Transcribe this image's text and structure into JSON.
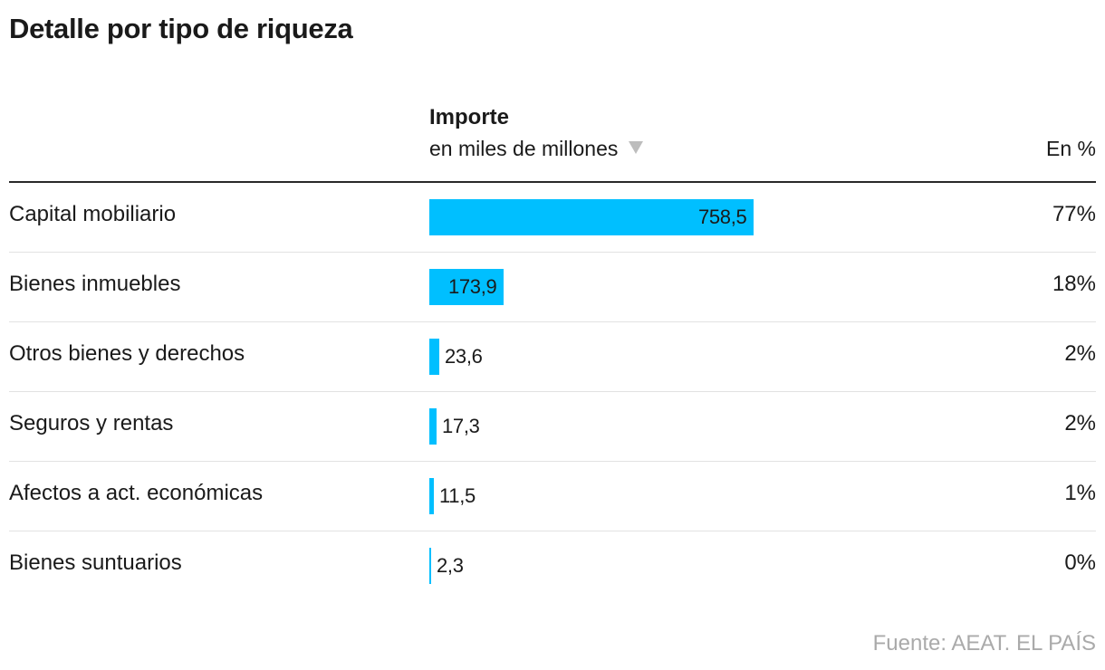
{
  "title": "Detalle por tipo de riqueza",
  "header": {
    "importe": "Importe",
    "unit": "en miles de millones",
    "pct": "En %"
  },
  "chart_data": {
    "type": "bar",
    "title": "Detalle por tipo de riqueza",
    "xlabel": "Importe en miles de millones",
    "ylabel": "",
    "categories": [
      "Capital mobiliario",
      "Bienes inmuebles",
      "Otros bienes y derechos",
      "Seguros y rentas",
      "Afectos a act. económicas",
      "Bienes suntuarios"
    ],
    "values": [
      758.5,
      173.9,
      23.6,
      17.3,
      11.5,
      2.3
    ],
    "value_labels": [
      "758,5",
      "173,9",
      "23,6",
      "17,3",
      "11,5",
      "2,3"
    ],
    "percent_labels": [
      "77%",
      "18%",
      "2%",
      "2%",
      "1%",
      "0%"
    ],
    "xlim": [
      0,
      758.5
    ],
    "bar_color": "#00bfff",
    "sort_indicator": "descending"
  },
  "source": "Fuente: AEAT. EL PAÍS"
}
